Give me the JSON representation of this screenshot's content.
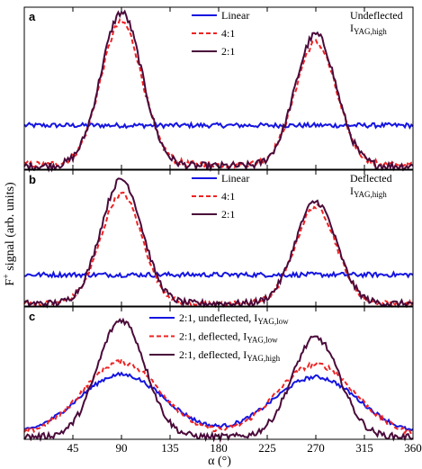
{
  "chart_data": {
    "type": "line",
    "ylabel_main": "F",
    "ylabel_sup": "+",
    "ylabel_rest": " signal (arb. units)",
    "xlabel": "α (°)",
    "xlim": [
      0,
      360
    ],
    "x_ticks": [
      45,
      90,
      135,
      180,
      225,
      270,
      315,
      360
    ],
    "panels": [
      {
        "letter": "a",
        "annotation": {
          "line1": "Undeflected",
          "line2_main": "I",
          "line2_sub": "YAG,high"
        },
        "ylim": [
          0,
          1
        ],
        "series": [
          {
            "name": "Linear",
            "color": "#1515e0",
            "dash": "solid",
            "peaks": [],
            "baseline": 0.28,
            "amplitude": 0.0,
            "noise": 0.015
          },
          {
            "name": "4:1",
            "color": "#ee2222",
            "dash": "dashed",
            "peaks": [
              90,
              270
            ],
            "baseline": 0.03,
            "amplitude": [
              0.91,
              0.78
            ],
            "noise": 0.02
          },
          {
            "name": "2:1",
            "color": "#4a0a3a",
            "dash": "solid",
            "peaks": [
              90,
              270
            ],
            "baseline": 0.02,
            "amplitude": [
              0.98,
              0.84
            ],
            "noise": 0.025
          }
        ]
      },
      {
        "letter": "b",
        "annotation": {
          "line1": "Deflected",
          "line2_main": "I",
          "line2_sub": "YAG,high"
        },
        "ylim": [
          0,
          1
        ],
        "series": [
          {
            "name": "Linear",
            "color": "#1515e0",
            "dash": "solid",
            "peaks": [],
            "baseline": 0.24,
            "amplitude": 0.0,
            "noise": 0.018
          },
          {
            "name": "4:1",
            "color": "#ee2222",
            "dash": "dashed",
            "peaks": [
              90,
              270
            ],
            "baseline": 0.02,
            "amplitude": [
              0.84,
              0.74
            ],
            "noise": 0.02
          },
          {
            "name": "2:1",
            "color": "#4a0a3a",
            "dash": "solid",
            "peaks": [
              90,
              270
            ],
            "baseline": 0.02,
            "amplitude": [
              0.95,
              0.78
            ],
            "noise": 0.025
          }
        ]
      },
      {
        "letter": "c",
        "annotation": null,
        "ylim": [
          0,
          1
        ],
        "series": [
          {
            "name_main": "2:1, undeflected, I",
            "name_sub": "YAG,low",
            "color": "#1515e0",
            "dash": "solid",
            "peaks": [
              90,
              270
            ],
            "baseline": 0.03,
            "amplitude": [
              0.48,
              0.46
            ],
            "width": 40,
            "noise": 0.015
          },
          {
            "name_main": "2:1, deflected, I",
            "name_sub": "YAG,low",
            "color": "#ee2222",
            "dash": "dashed",
            "peaks": [
              90,
              270
            ],
            "baseline": 0.03,
            "amplitude": [
              0.58,
              0.56
            ],
            "width": 36,
            "noise": 0.02
          },
          {
            "name_main": "2:1, deflected, I",
            "name_sub": "YAG,high",
            "color": "#4a0a3a",
            "dash": "solid",
            "peaks": [
              90,
              270
            ],
            "baseline": 0.02,
            "amplitude": [
              0.92,
              0.78
            ],
            "width": 22,
            "noise": 0.025
          }
        ]
      }
    ]
  }
}
